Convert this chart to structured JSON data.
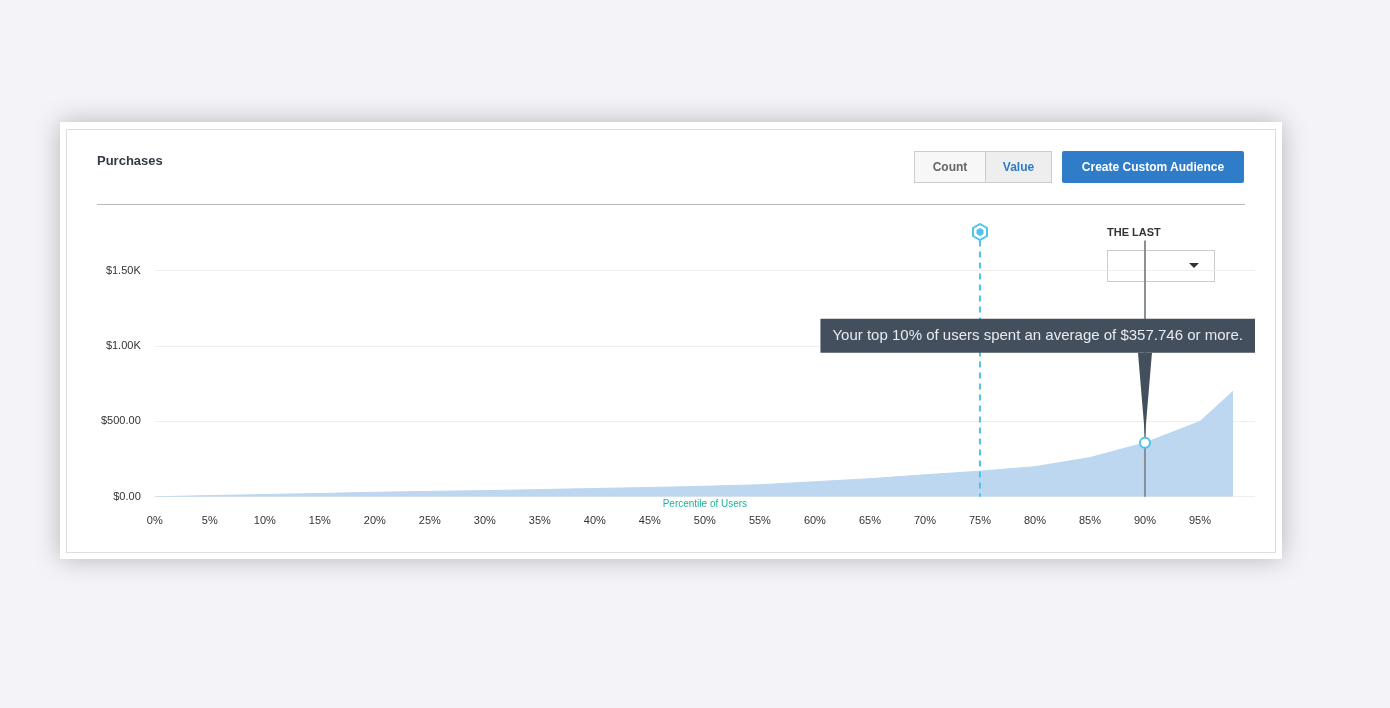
{
  "chart_data": {
    "type": "area",
    "title": "Purchases",
    "xlabel": "Percentile of Users",
    "x": [
      0,
      5,
      10,
      15,
      20,
      25,
      30,
      35,
      40,
      45,
      50,
      55,
      60,
      65,
      70,
      75,
      80,
      85,
      90,
      95,
      98
    ],
    "series": [
      {
        "color": "#bcd7ef",
        "values": [
          0,
          8,
          15,
          22,
          30,
          36,
          41,
          48,
          55,
          62,
          70,
          80,
          100,
          120,
          146,
          170,
          200,
          260,
          358,
          500,
          700
        ]
      }
    ],
    "xlim": [
      0,
      100
    ],
    "xticks": [
      {
        "value": 0,
        "label": "0%"
      },
      {
        "value": 5,
        "label": "5%"
      },
      {
        "value": 10,
        "label": "10%"
      },
      {
        "value": 15,
        "label": "15%"
      },
      {
        "value": 20,
        "label": "20%"
      },
      {
        "value": 25,
        "label": "25%"
      },
      {
        "value": 30,
        "label": "30%"
      },
      {
        "value": 35,
        "label": "35%"
      },
      {
        "value": 40,
        "label": "40%"
      },
      {
        "value": 45,
        "label": "45%"
      },
      {
        "value": 50,
        "label": "50%"
      },
      {
        "value": 55,
        "label": "55%"
      },
      {
        "value": 60,
        "label": "60%"
      },
      {
        "value": 65,
        "label": "65%"
      },
      {
        "value": 70,
        "label": "70%"
      },
      {
        "value": 75,
        "label": "75%"
      },
      {
        "value": 80,
        "label": "80%"
      },
      {
        "value": 85,
        "label": "85%"
      },
      {
        "value": 90,
        "label": "90%"
      },
      {
        "value": 95,
        "label": "95%"
      }
    ],
    "ylim": [
      0,
      1700
    ],
    "yticks": [
      {
        "value": 0,
        "label": "$0.00"
      },
      {
        "value": 500,
        "label": "$500.00"
      },
      {
        "value": 1000,
        "label": "$1.00K"
      },
      {
        "value": 1500,
        "label": "$1.50K"
      }
    ],
    "grid": "y",
    "ref_lines": [
      {
        "axis": "x",
        "value": 75,
        "color": "#4fc3e8",
        "line_style": "dashed"
      },
      {
        "axis": "x",
        "value": 90,
        "color": "#8a8f96",
        "line_style": "solid"
      }
    ],
    "annotations": [
      {
        "text": "Your top 10% of users spent an average of $357.746 or more.",
        "x": 90,
        "y": 358
      },
      "Count",
      "Value",
      "Create Custom Audience",
      "THE LAST"
    ]
  }
}
